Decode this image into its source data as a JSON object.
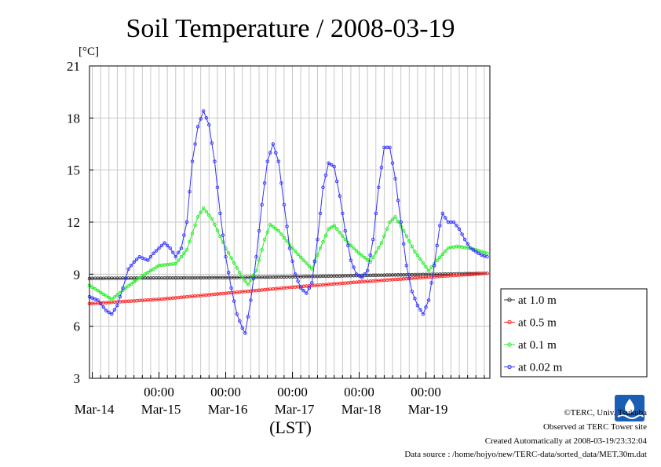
{
  "chart_data": {
    "type": "line",
    "title": "Soil Temperature / 2008-03-19",
    "ylabel": "[°C]",
    "xlabel": "(LST)",
    "ylim": [
      3,
      21
    ],
    "yticks": [
      3,
      6,
      9,
      12,
      15,
      18,
      21
    ],
    "x_unit": "hours since 2008-03-14 00:00 LST (axis start approx 2008-03-13 23:00)",
    "xlim": [
      -1,
      143
    ],
    "time_tick_label": "00:00",
    "day_labels": [
      "Mar-14",
      "Mar-15",
      "Mar-16",
      "Mar-17",
      "Mar-18",
      "Mar-19"
    ],
    "grid": true,
    "legend_position": "right",
    "series": [
      {
        "name": "at 1.0 m",
        "color": "#333333",
        "points": [
          [
            -1,
            8.75
          ],
          [
            0,
            8.76
          ],
          [
            24,
            8.78
          ],
          [
            48,
            8.8
          ],
          [
            72,
            8.85
          ],
          [
            96,
            8.92
          ],
          [
            120,
            8.98
          ],
          [
            142,
            9.05
          ]
        ]
      },
      {
        "name": "at 0.5 m",
        "color": "#ff2222",
        "points": [
          [
            -1,
            7.3
          ],
          [
            24,
            7.55
          ],
          [
            48,
            7.9
          ],
          [
            72,
            8.25
          ],
          [
            96,
            8.55
          ],
          [
            120,
            8.82
          ],
          [
            142,
            9.05
          ]
        ]
      },
      {
        "name": "at 0.1 m",
        "color": "#22ee22",
        "points": [
          [
            -1,
            8.35
          ],
          [
            4,
            7.85
          ],
          [
            7,
            7.55
          ],
          [
            12,
            8.2
          ],
          [
            18,
            8.9
          ],
          [
            24,
            9.5
          ],
          [
            30,
            9.6
          ],
          [
            34,
            10.4
          ],
          [
            38,
            12.3
          ],
          [
            40,
            12.8
          ],
          [
            43,
            12.2
          ],
          [
            48,
            10.5
          ],
          [
            54,
            8.8
          ],
          [
            56,
            8.4
          ],
          [
            59,
            9.2
          ],
          [
            62,
            11.0
          ],
          [
            64,
            11.85
          ],
          [
            67,
            11.5
          ],
          [
            72,
            10.5
          ],
          [
            76,
            9.8
          ],
          [
            79,
            9.3
          ],
          [
            82,
            10.5
          ],
          [
            85,
            11.6
          ],
          [
            87,
            11.8
          ],
          [
            92,
            10.8
          ],
          [
            96,
            10.2
          ],
          [
            100,
            9.7
          ],
          [
            104,
            10.8
          ],
          [
            107,
            12.0
          ],
          [
            109,
            12.3
          ],
          [
            112,
            11.5
          ],
          [
            116,
            10.3
          ],
          [
            121,
            9.2
          ],
          [
            124,
            9.8
          ],
          [
            128,
            10.5
          ],
          [
            131,
            10.6
          ],
          [
            136,
            10.5
          ],
          [
            142,
            10.2
          ]
        ]
      },
      {
        "name": "at 0.02 m",
        "color": "#3333ff",
        "points": [
          [
            -1,
            7.7
          ],
          [
            2,
            7.5
          ],
          [
            5,
            6.9
          ],
          [
            7,
            6.7
          ],
          [
            9,
            7.2
          ],
          [
            11,
            8.2
          ],
          [
            13,
            9.3
          ],
          [
            15,
            9.7
          ],
          [
            17,
            10.0
          ],
          [
            20,
            9.8
          ],
          [
            22,
            10.2
          ],
          [
            24,
            10.5
          ],
          [
            26,
            10.8
          ],
          [
            28,
            10.5
          ],
          [
            30,
            10.0
          ],
          [
            32,
            10.5
          ],
          [
            34,
            12.0
          ],
          [
            36,
            15.5
          ],
          [
            38,
            17.5
          ],
          [
            40,
            18.4
          ],
          [
            42,
            17.6
          ],
          [
            44,
            15.5
          ],
          [
            46,
            12.5
          ],
          [
            48,
            10.0
          ],
          [
            50,
            8.2
          ],
          [
            52,
            6.7
          ],
          [
            54,
            5.9
          ],
          [
            55,
            5.6
          ],
          [
            57,
            7.5
          ],
          [
            59,
            10.0
          ],
          [
            61,
            13.0
          ],
          [
            63,
            15.5
          ],
          [
            65,
            16.5
          ],
          [
            67,
            15.5
          ],
          [
            69,
            13.0
          ],
          [
            71,
            10.5
          ],
          [
            73,
            9.0
          ],
          [
            75,
            8.2
          ],
          [
            77,
            7.9
          ],
          [
            79,
            8.5
          ],
          [
            81,
            11.0
          ],
          [
            83,
            14.0
          ],
          [
            85,
            15.4
          ],
          [
            87,
            15.2
          ],
          [
            89,
            13.5
          ],
          [
            91,
            11.5
          ],
          [
            93,
            9.8
          ],
          [
            95,
            9.0
          ],
          [
            97,
            8.8
          ],
          [
            99,
            9.2
          ],
          [
            101,
            11.0
          ],
          [
            103,
            14.0
          ],
          [
            105,
            16.3
          ],
          [
            107,
            16.3
          ],
          [
            109,
            14.5
          ],
          [
            111,
            12.0
          ],
          [
            113,
            9.5
          ],
          [
            115,
            8.0
          ],
          [
            117,
            7.2
          ],
          [
            119,
            6.7
          ],
          [
            121,
            7.5
          ],
          [
            123,
            9.5
          ],
          [
            125,
            11.8
          ],
          [
            126,
            12.5
          ],
          [
            128,
            12.0
          ],
          [
            130,
            12.0
          ],
          [
            132,
            11.6
          ],
          [
            134,
            11.0
          ],
          [
            136,
            10.5
          ],
          [
            138,
            10.3
          ],
          [
            140,
            10.1
          ],
          [
            142,
            10.0
          ]
        ]
      }
    ]
  },
  "footer": {
    "copyright": "©TERC, Univ. Tsukuba",
    "observed": "Observed at TERC Tower site",
    "created": "Created Automatically at 2008-03-19/23:32:04",
    "source": "Data source : /home/hojyo/new/TERC-data/sorted_data/MET.30m.dat",
    "logo_text": "TERC"
  }
}
